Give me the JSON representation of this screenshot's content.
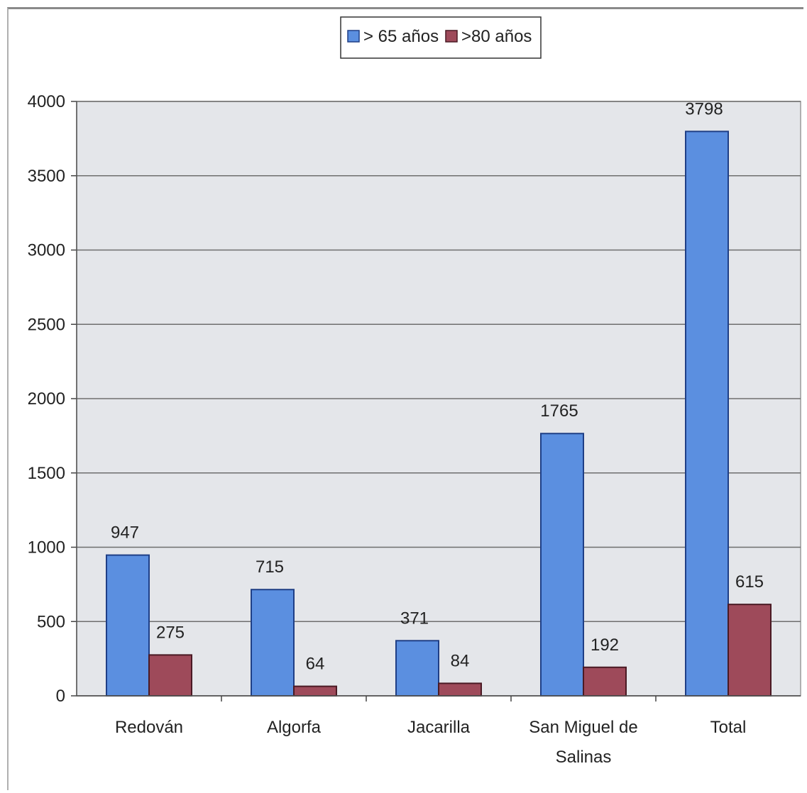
{
  "chart_data": {
    "type": "bar",
    "categories": [
      [
        "Redován"
      ],
      [
        "Algorfa"
      ],
      [
        "Jacarilla"
      ],
      [
        "San Miguel de",
        "Salinas"
      ],
      [
        "Total"
      ]
    ],
    "series": [
      {
        "name": "> 65 años",
        "values": [
          947,
          715,
          371,
          1765,
          3798
        ],
        "labels": [
          "947",
          "715",
          "371",
          "1765",
          "3798"
        ]
      },
      {
        "name": ">80 años",
        "values": [
          275,
          64,
          84,
          192,
          615
        ],
        "labels": [
          "275",
          "64",
          "84",
          "192",
          "615"
        ]
      }
    ],
    "ylim": [
      0,
      4000
    ],
    "yticks": [
      "0",
      "500",
      "1000",
      "1500",
      "2000",
      "2500",
      "3000",
      "3500",
      "4000"
    ],
    "ytick_values": [
      0,
      500,
      1000,
      1500,
      2000,
      2500,
      3000,
      3500,
      4000
    ],
    "grid": true,
    "legend_position": "top-center",
    "colors": {
      "series": [
        "#5b8fe0",
        "#9e4a5a"
      ],
      "series_stroke": [
        "#1f3f86",
        "#4a1a24"
      ],
      "plot_background": "#e4e6ea",
      "gridline": "#6e6e6e"
    }
  }
}
